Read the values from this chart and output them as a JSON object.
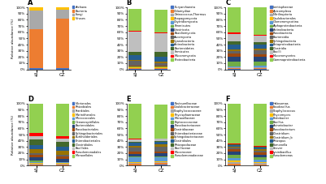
{
  "panel_A": {
    "title": "A",
    "labels": [
      "Archaea",
      "Bacteria",
      "Fungi",
      "Viruses"
    ],
    "colors": [
      "#4472C4",
      "#ED7D31",
      "#A9A9A9",
      "#FFC000"
    ],
    "SJ": [
      0.02,
      0.63,
      0.3,
      0.05
    ],
    "CZ": [
      0.02,
      0.8,
      0.14,
      0.04
    ]
  },
  "panel_B": {
    "title": "B",
    "labels": [
      "Euryarchaeota",
      "Chlamydiae",
      "Deinococcus-Thermus",
      "Zoopagomycota",
      "Chytridiomycota",
      "Tenericutes",
      "Uroviricota",
      "Basidiomycota",
      "Ascomycota",
      "Cyanobacteria",
      "Actinobacteria",
      "Bacteroidetes",
      "Firmicutes",
      "Mucoromycota",
      "Proteobacteria"
    ],
    "colors": [
      "#4472C4",
      "#ED7D31",
      "#A9A9A9",
      "#FFC000",
      "#5B9BD5",
      "#70AD47",
      "#264478",
      "#9E480E",
      "#636363",
      "#997300",
      "#255E91",
      "#43682B",
      "#BFBFBF",
      "#FF0000",
      "#92D050"
    ],
    "SJ": [
      0.01,
      0.01,
      0.005,
      0.005,
      0.005,
      0.01,
      0.005,
      0.015,
      0.07,
      0.02,
      0.08,
      0.05,
      0.33,
      0.01,
      0.35
    ],
    "CZ": [
      0.01,
      0.01,
      0.005,
      0.005,
      0.005,
      0.01,
      0.005,
      0.01,
      0.04,
      0.02,
      0.09,
      0.07,
      0.3,
      0.01,
      0.37
    ]
  },
  "panel_C": {
    "title": "C",
    "labels": [
      "Lentisphaerae",
      "Apicomplexa",
      "Nitriliruptoria",
      "Caulobacterales",
      "Glomeromycotina",
      "Alphaproteobacteria",
      "Actinobacteria",
      "Flavobacteria",
      "Bacteroidia",
      "Sphingobacteria",
      "Betaproteobacteria",
      "Clostridia",
      "Bacilli",
      "Mucoromycetes",
      "Gammaproteobacteria"
    ],
    "colors": [
      "#4472C4",
      "#ED7D31",
      "#A9A9A9",
      "#FFC000",
      "#5B9BD5",
      "#70AD47",
      "#264478",
      "#9E480E",
      "#636363",
      "#997300",
      "#255E91",
      "#43682B",
      "#BFBFBF",
      "#FF0000",
      "#92D050"
    ],
    "SJ": [
      0.01,
      0.01,
      0.01,
      0.01,
      0.01,
      0.07,
      0.09,
      0.04,
      0.05,
      0.02,
      0.08,
      0.05,
      0.12,
      0.02,
      0.41
    ],
    "CZ": [
      0.01,
      0.01,
      0.01,
      0.01,
      0.02,
      0.06,
      0.08,
      0.04,
      0.07,
      0.02,
      0.07,
      0.04,
      0.1,
      0.02,
      0.44
    ]
  },
  "panel_D": {
    "title": "D",
    "labels": [
      "Vibrionales",
      "Rhizobiales",
      "Frankiales",
      "Marinitherales",
      "Micrococcales",
      "Oceanospirillales",
      "Bacteroidales",
      "Flavobacteriales",
      "Sphingobacteriales",
      "Burkholderiales",
      "Enterobacteriales",
      "Clostridiales",
      "Bacillales",
      "Pseudomonadales",
      "Moraxellales"
    ],
    "colors": [
      "#4472C4",
      "#ED7D31",
      "#A9A9A9",
      "#FFC000",
      "#5B9BD5",
      "#70AD47",
      "#264478",
      "#9E480E",
      "#636363",
      "#997300",
      "#255E91",
      "#43682B",
      "#BFBFBF",
      "#FF0000",
      "#92D050"
    ],
    "SJ": [
      0.01,
      0.01,
      0.01,
      0.01,
      0.02,
      0.02,
      0.05,
      0.04,
      0.03,
      0.07,
      0.06,
      0.09,
      0.06,
      0.04,
      0.48
    ],
    "CZ": [
      0.01,
      0.01,
      0.01,
      0.01,
      0.01,
      0.01,
      0.05,
      0.04,
      0.03,
      0.06,
      0.06,
      0.08,
      0.05,
      0.04,
      0.53
    ]
  },
  "panel_E": {
    "title": "E",
    "labels": [
      "Pasteurellaceae",
      "Oxalobacteraceae",
      "Staphylococcaceae",
      "Phycisphaeraceae",
      "Moraxellaceae",
      "Peptococcaceae",
      "Flavobacteriaceae",
      "Clostridiaceae",
      "Enterobacteriaceae",
      "Sphingobacteriaceae",
      "Clostridiales",
      "Rhizopodaceae",
      "Bacillaceae",
      "Mucoroceae",
      "Pseudomonadaceae"
    ],
    "colors": [
      "#4472C4",
      "#ED7D31",
      "#A9A9A9",
      "#FFC000",
      "#5B9BD5",
      "#70AD47",
      "#264478",
      "#9E480E",
      "#636363",
      "#997300",
      "#255E91",
      "#43682B",
      "#BFBFBF",
      "#FF0000",
      "#92D050"
    ],
    "SJ": [
      0.01,
      0.02,
      0.01,
      0.01,
      0.09,
      0.01,
      0.04,
      0.03,
      0.07,
      0.03,
      0.05,
      0.01,
      0.04,
      0.01,
      0.57
    ],
    "CZ": [
      0.02,
      0.02,
      0.02,
      0.01,
      0.07,
      0.01,
      0.05,
      0.03,
      0.08,
      0.03,
      0.04,
      0.01,
      0.04,
      0.01,
      0.55
    ]
  },
  "panel_F": {
    "title": "F",
    "labels": [
      "Halosomas",
      "Fusobacillus",
      "Staphylococcus",
      "Phycomyces",
      "Pedobacter",
      "Bacillus",
      "Acinetobacter",
      "Flavobacterium",
      "Clostridium",
      "Clostridium_b",
      "Rhizopus",
      "Fumonella",
      "Idiover",
      "Lysinibacillus",
      "Pseudomonas"
    ],
    "colors": [
      "#4472C4",
      "#ED7D31",
      "#A9A9A9",
      "#FFC000",
      "#5B9BD5",
      "#70AD47",
      "#264478",
      "#9E480E",
      "#636363",
      "#997300",
      "#255E91",
      "#43682B",
      "#BFBFBF",
      "#FF0000",
      "#92D050"
    ],
    "SJ": [
      0.01,
      0.02,
      0.03,
      0.02,
      0.04,
      0.06,
      0.05,
      0.04,
      0.02,
      0.02,
      0.02,
      0.01,
      0.01,
      0.01,
      0.64
    ],
    "CZ": [
      0.01,
      0.01,
      0.02,
      0.02,
      0.03,
      0.05,
      0.04,
      0.03,
      0.03,
      0.03,
      0.02,
      0.01,
      0.01,
      0.01,
      0.68
    ]
  },
  "ylabel": "Relative abundance (%)",
  "ytick_labels": [
    "0%",
    "10%",
    "20%",
    "30%",
    "40%",
    "50%",
    "60%",
    "70%",
    "80%",
    "90%",
    "100%"
  ],
  "ytick_vals": [
    0.0,
    0.1,
    0.2,
    0.3,
    0.4,
    0.5,
    0.6,
    0.7,
    0.8,
    0.9,
    1.0
  ],
  "bar_width": 0.5
}
